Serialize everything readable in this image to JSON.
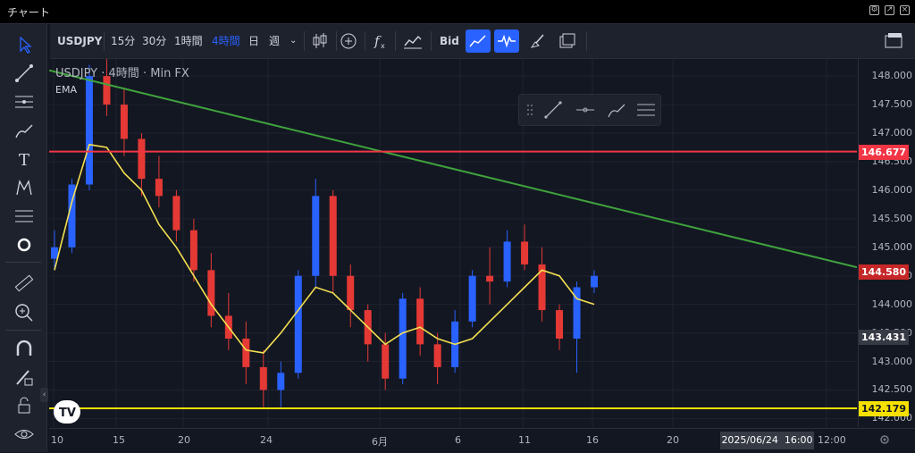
{
  "window": {
    "title": "チャート"
  },
  "toolbar": {
    "symbol": "USDJPY",
    "intervals": [
      "15分",
      "30分",
      "1時間",
      "4時間",
      "日",
      "週"
    ],
    "active_interval": "4時間",
    "bid": "Bid",
    "icons": [
      "candles-icon",
      "add-indicator-icon",
      "function-icon",
      "compare-icon",
      "bid-label",
      "trend-active-icon",
      "signal-active-icon",
      "brush-icon",
      "layout-icon"
    ]
  },
  "legend": {
    "symbol": "USDJPY",
    "interval": "4時間",
    "source": "Min FX",
    "indicator": "EMA"
  },
  "yaxis": {
    "ticks": [
      "148.000",
      "147.500",
      "147.000",
      "146.500",
      "146.000",
      "145.500",
      "145.000",
      "144.500",
      "144.000",
      "143.500",
      "143.000",
      "142.500",
      "142.000"
    ]
  },
  "badges": {
    "red_line": "146.677",
    "current": "144.580",
    "gray": "143.431",
    "yellow_line": "142.179"
  },
  "xaxis": {
    "ticks": [
      "10",
      "15",
      "20",
      "24",
      "6月",
      "6",
      "11",
      "16",
      "20",
      "12:00"
    ],
    "cursor_date": "2025/06/24",
    "cursor_time": "16:00"
  },
  "colors": {
    "bull": "#2962ff",
    "bear": "#e53935",
    "ema": "#f5e050",
    "trend": "#3fa33c",
    "red_line": "#f23645",
    "yellow_line": "#f5e000"
  },
  "chart_data": {
    "type": "candlestick",
    "ylim": [
      141.85,
      148.3
    ],
    "horizontal_lines": [
      146.677,
      142.179
    ],
    "trend_line": {
      "from": 148.1,
      "to": 144.65
    },
    "ema": [
      144.6,
      145.8,
      146.8,
      146.75,
      146.3,
      146.0,
      145.4,
      145.0,
      144.5,
      144.0,
      143.6,
      143.2,
      143.15,
      143.5,
      143.9,
      144.3,
      144.2,
      143.9,
      143.6,
      143.3,
      143.5,
      143.6,
      143.4,
      143.3,
      143.4,
      143.7,
      144.0,
      144.3,
      144.6,
      144.5,
      144.1,
      144.0
    ],
    "candles": [
      [
        144.8,
        145.3,
        144.6,
        145.0
      ],
      [
        145.0,
        146.2,
        144.9,
        146.1
      ],
      [
        146.1,
        148.2,
        146.0,
        148.0
      ],
      [
        148.0,
        148.3,
        147.3,
        147.5
      ],
      [
        147.5,
        147.8,
        146.6,
        146.9
      ],
      [
        146.9,
        147.0,
        145.9,
        146.2
      ],
      [
        146.2,
        146.6,
        145.7,
        145.9
      ],
      [
        145.9,
        146.0,
        145.1,
        145.3
      ],
      [
        145.3,
        145.5,
        144.4,
        144.6
      ],
      [
        144.6,
        144.9,
        143.6,
        143.8
      ],
      [
        143.8,
        144.2,
        143.2,
        143.4
      ],
      [
        143.4,
        143.7,
        142.6,
        142.9
      ],
      [
        142.9,
        143.2,
        142.2,
        142.5
      ],
      [
        142.5,
        143.0,
        142.2,
        142.8
      ],
      [
        142.8,
        144.6,
        142.7,
        144.5
      ],
      [
        144.5,
        146.2,
        144.3,
        145.9
      ],
      [
        145.9,
        146.0,
        144.2,
        144.5
      ],
      [
        144.5,
        144.7,
        143.6,
        143.9
      ],
      [
        143.9,
        144.0,
        143.0,
        143.3
      ],
      [
        143.3,
        143.5,
        142.5,
        142.7
      ],
      [
        142.7,
        144.2,
        142.6,
        144.1
      ],
      [
        144.1,
        144.3,
        143.1,
        143.3
      ],
      [
        143.3,
        143.5,
        142.6,
        142.9
      ],
      [
        142.9,
        143.9,
        142.8,
        143.7
      ],
      [
        143.7,
        144.6,
        143.6,
        144.5
      ],
      [
        144.5,
        145.0,
        144.0,
        144.4
      ],
      [
        144.4,
        145.3,
        144.3,
        145.1
      ],
      [
        145.1,
        145.4,
        144.6,
        144.7
      ],
      [
        144.7,
        145.0,
        143.7,
        143.9
      ],
      [
        143.9,
        144.0,
        143.2,
        143.4
      ],
      [
        143.4,
        144.4,
        142.8,
        144.3
      ],
      [
        144.3,
        144.6,
        144.2,
        144.5
      ]
    ]
  }
}
